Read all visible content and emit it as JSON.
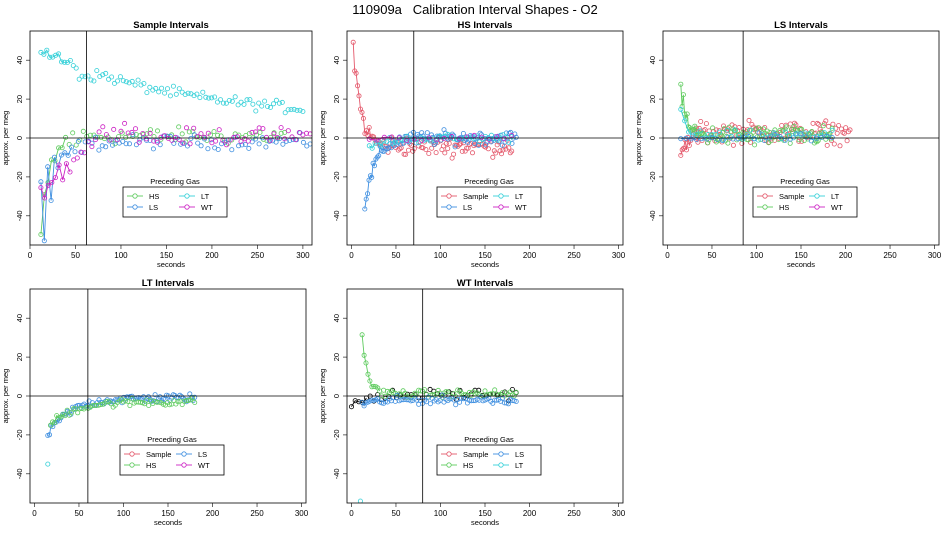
{
  "figure_title": "110909a   Calibration Interval Shapes - O2",
  "colors": {
    "Sample": "#e4586b",
    "HS": "#5ecb5e",
    "LS": "#3f8fe0",
    "LT": "#35d0d8",
    "WT": "#cc22c4",
    "other": "#000000"
  },
  "chart_data": [
    {
      "type": "scatter",
      "title": "Sample Intervals",
      "xlabel": "seconds",
      "ylabel": "approx. per meg",
      "xlim": [
        0,
        310
      ],
      "ylim": [
        -55,
        55
      ],
      "xticks": [
        0,
        50,
        100,
        150,
        200,
        250,
        300
      ],
      "yticks": [
        -40,
        -20,
        0,
        20,
        40
      ],
      "vline": 62,
      "legend": {
        "title": "Preceding Gas",
        "entries": [
          "HS",
          "LT",
          "LS",
          "WT"
        ],
        "columns": 2,
        "placement": "bottom-center"
      },
      "series": [
        {
          "name": "HS",
          "x_start": 12,
          "x_end": 280,
          "n": 70,
          "start": -50,
          "end": 1,
          "decay": 10,
          "noise": 3,
          "early_osc": 30
        },
        {
          "name": "LS",
          "x_start": 12,
          "x_end": 308,
          "n": 80,
          "start": -45,
          "end": -2,
          "decay": 15,
          "noise": 2.5,
          "early_osc": 28
        },
        {
          "name": "LT",
          "x_start": 12,
          "x_end": 300,
          "n": 90,
          "start": 45,
          "end": 10,
          "decay": 150,
          "noise": 2,
          "mid": 30
        },
        {
          "name": "WT",
          "x_start": 12,
          "x_end": 308,
          "n": 75,
          "start": -30,
          "end": 1,
          "decay": 40,
          "noise": 3,
          "early_osc": 25,
          "bump": 8
        }
      ]
    },
    {
      "type": "scatter",
      "title": "HS Intervals",
      "xlabel": "seconds",
      "ylabel": "approx. per meg",
      "xlim": [
        -5,
        305
      ],
      "ylim": [
        -55,
        55
      ],
      "xticks": [
        0,
        50,
        100,
        150,
        200,
        250,
        300
      ],
      "yticks": [
        -40,
        -20,
        0,
        20,
        40
      ],
      "vline": 70,
      "legend": {
        "title": "Preceding Gas",
        "entries": [
          "Sample",
          "LT",
          "LS",
          "WT"
        ],
        "columns": 2,
        "placement": "bottom-center"
      },
      "series": [
        {
          "name": "Sample",
          "x_start": 2,
          "x_end": 180,
          "n": 110,
          "start": 50,
          "end": -4,
          "decay": 8,
          "noise": 3.5
        },
        {
          "name": "LS",
          "x_start": 15,
          "x_end": 185,
          "n": 110,
          "start": -35,
          "end": 0,
          "decay": 12,
          "noise": 2.5
        },
        {
          "name": "LT",
          "x_start": 20,
          "x_end": 180,
          "n": 50,
          "start": -5,
          "end": 0,
          "decay": 20,
          "noise": 1.5
        },
        {
          "name": "WT",
          "x_start": 20,
          "x_end": 180,
          "n": 20,
          "start": 0,
          "end": 0,
          "decay": 20,
          "noise": 1
        }
      ]
    },
    {
      "type": "scatter",
      "title": "LS Intervals",
      "xlabel": "seconds",
      "ylabel": "approx. per meg",
      "xlim": [
        -5,
        305
      ],
      "ylim": [
        -55,
        55
      ],
      "xticks": [
        0,
        50,
        100,
        150,
        200,
        250,
        300
      ],
      "yticks": [
        -40,
        -20,
        0,
        20,
        40
      ],
      "vline": 85,
      "legend": {
        "title": "Preceding Gas",
        "entries": [
          "Sample",
          "LT",
          "HS",
          "WT"
        ],
        "columns": 2,
        "placement": "bottom-center"
      },
      "series": [
        {
          "name": "Sample",
          "x_start": 15,
          "x_end": 205,
          "n": 120,
          "start": -10,
          "end": 3,
          "decay": 8,
          "noise": 4
        },
        {
          "name": "HS",
          "x_start": 15,
          "x_end": 185,
          "n": 120,
          "start": 25,
          "end": 1,
          "decay": 6,
          "noise": 3.5
        },
        {
          "name": "LT",
          "x_start": 15,
          "x_end": 185,
          "n": 40,
          "start": 15,
          "end": 1,
          "decay": 6,
          "noise": 2
        },
        {
          "name": "LS",
          "x_start": 15,
          "x_end": 185,
          "n": 30,
          "start": 0,
          "end": 0,
          "decay": 10,
          "noise": 1.5
        }
      ]
    },
    {
      "type": "scatter",
      "title": "LT Intervals",
      "xlabel": "seconds",
      "ylabel": "approx. per meg",
      "xlim": [
        -5,
        305
      ],
      "ylim": [
        -55,
        55
      ],
      "xticks": [
        0,
        50,
        100,
        150,
        200,
        250,
        300
      ],
      "yticks": [
        -40,
        -20,
        0,
        20,
        40
      ],
      "vline": 60,
      "legend": {
        "title": "Preceding Gas",
        "entries": [
          "Sample",
          "LS",
          "HS",
          "WT"
        ],
        "columns": 2,
        "placement": "bottom-center"
      },
      "series": [
        {
          "name": "LS",
          "x_start": 15,
          "x_end": 180,
          "n": 90,
          "start": -20,
          "end": -1,
          "decay": 25,
          "noise": 1.5
        },
        {
          "name": "HS",
          "x_start": 18,
          "x_end": 180,
          "n": 70,
          "start": -15,
          "end": -3,
          "decay": 25,
          "noise": 1.5
        },
        {
          "name": "LT",
          "x_start": 15,
          "x_end": 15,
          "n": 1,
          "start": -35,
          "end": -35,
          "decay": 1,
          "noise": 0
        }
      ]
    },
    {
      "type": "scatter",
      "title": "WT Intervals",
      "xlabel": "seconds",
      "ylabel": "approx. per meg",
      "xlim": [
        -5,
        305
      ],
      "ylim": [
        -55,
        55
      ],
      "xticks": [
        0,
        50,
        100,
        150,
        200,
        250,
        300
      ],
      "yticks": [
        -40,
        -20,
        0,
        20,
        40
      ],
      "vline": 80,
      "legend": {
        "title": "Preceding Gas",
        "entries": [
          "Sample",
          "LS",
          "HS",
          "LT"
        ],
        "columns": 2,
        "placement": "bottom-center"
      },
      "series": [
        {
          "name": "other",
          "x_start": 0,
          "x_end": 185,
          "n": 45,
          "start": -4,
          "end": 1,
          "decay": 30,
          "noise": 2
        },
        {
          "name": "HS",
          "x_start": 12,
          "x_end": 185,
          "n": 80,
          "start": 32,
          "end": 1,
          "decay": 6,
          "noise": 1.5
        },
        {
          "name": "LS",
          "x_start": 12,
          "x_end": 185,
          "n": 80,
          "start": -4,
          "end": -2,
          "decay": 20,
          "noise": 1.5
        },
        {
          "name": "LT",
          "x_start": 10,
          "x_end": 10,
          "n": 1,
          "start": -54,
          "end": -54,
          "decay": 1,
          "noise": 0
        }
      ]
    }
  ]
}
